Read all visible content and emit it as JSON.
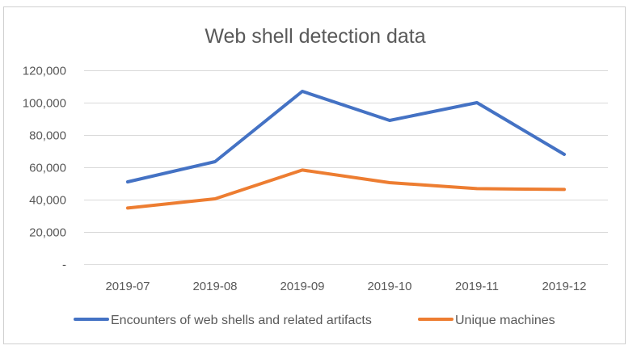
{
  "chart_data": {
    "type": "line",
    "title": "Web shell detection data",
    "categories": [
      "2019-07",
      "2019-08",
      "2019-09",
      "2019-10",
      "2019-11",
      "2019-12"
    ],
    "ylim": [
      0,
      120000
    ],
    "yticks": [
      {
        "value": 0,
        "label": "-"
      },
      {
        "value": 20000,
        "label": "20,000"
      },
      {
        "value": 40000,
        "label": "40,000"
      },
      {
        "value": 60000,
        "label": "60,000"
      },
      {
        "value": 80000,
        "label": "80,000"
      },
      {
        "value": 100000,
        "label": "100,000"
      },
      {
        "value": 120000,
        "label": "120,000"
      }
    ],
    "grid": true,
    "legend_position": "bottom",
    "series": [
      {
        "name": "Encounters of web shells and related artifacts",
        "color": "#4472C4",
        "values": [
          51000,
          63500,
          107000,
          89000,
          100000,
          68000
        ]
      },
      {
        "name": "Unique machines",
        "color": "#ED7D31",
        "values": [
          34800,
          40500,
          58300,
          50500,
          46800,
          46300
        ]
      }
    ]
  }
}
